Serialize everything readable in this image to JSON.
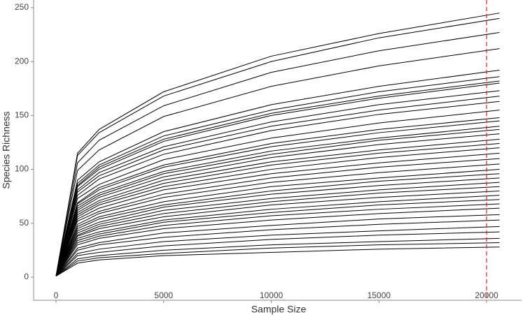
{
  "chart_data": {
    "type": "line",
    "xlabel": "Sample Size",
    "ylabel": "Species Richness",
    "x": [
      0,
      1000,
      2000,
      5000,
      10000,
      15000,
      20600
    ],
    "color": "#000000",
    "series": [
      {
        "values": [
          1,
          115,
          137,
          172,
          205,
          226,
          245
        ]
      },
      {
        "values": [
          1,
          113,
          134,
          168,
          200,
          222,
          240
        ]
      },
      {
        "values": [
          1,
          106,
          127,
          159,
          190,
          210,
          227
        ]
      },
      {
        "values": [
          1,
          99,
          118,
          149,
          177,
          196,
          212
        ]
      },
      {
        "values": [
          1,
          90,
          107,
          135,
          160,
          177,
          192
        ]
      },
      {
        "values": [
          1,
          87,
          104,
          131,
          155,
          172,
          186
        ]
      },
      {
        "values": [
          1,
          85,
          102,
          128,
          152,
          168,
          182
        ]
      },
      {
        "values": [
          1,
          84,
          100,
          126,
          150,
          166,
          180
        ]
      },
      {
        "values": [
          1,
          81,
          97,
          121,
          144,
          160,
          173
        ]
      },
      {
        "values": [
          1,
          79,
          94,
          118,
          140,
          155,
          168
        ]
      },
      {
        "values": [
          1,
          76,
          91,
          114,
          136,
          151,
          163
        ]
      },
      {
        "values": [
          1,
          73,
          86,
          109,
          129,
          143,
          155
        ]
      },
      {
        "values": [
          1,
          69,
          83,
          104,
          124,
          137,
          148
        ]
      },
      {
        "values": [
          1,
          68,
          81,
          102,
          121,
          134,
          145
        ]
      },
      {
        "values": [
          1,
          66,
          78,
          98,
          117,
          129,
          140
        ]
      },
      {
        "values": [
          1,
          64,
          76,
          96,
          114,
          127,
          137
        ]
      },
      {
        "values": [
          1,
          62,
          74,
          93,
          111,
          123,
          133
        ]
      },
      {
        "values": [
          1,
          60,
          71,
          90,
          107,
          118,
          128
        ]
      },
      {
        "values": [
          1,
          58,
          69,
          87,
          104,
          115,
          124
        ]
      },
      {
        "values": [
          1,
          56,
          67,
          84,
          100,
          111,
          120
        ]
      },
      {
        "values": [
          1,
          54,
          64,
          81,
          96,
          106,
          115
        ]
      },
      {
        "values": [
          1,
          52,
          61,
          77,
          92,
          102,
          110
        ]
      },
      {
        "values": [
          1,
          49,
          59,
          74,
          88,
          97,
          105
        ]
      },
      {
        "values": [
          1,
          47,
          56,
          70,
          84,
          92,
          100
        ]
      },
      {
        "values": [
          1,
          45,
          54,
          67,
          80,
          89,
          96
        ]
      },
      {
        "values": [
          1,
          43,
          51,
          65,
          77,
          85,
          92
        ]
      },
      {
        "values": [
          1,
          41,
          49,
          62,
          73,
          81,
          88
        ]
      },
      {
        "values": [
          1,
          39,
          47,
          59,
          70,
          78,
          84
        ]
      },
      {
        "values": [
          1,
          38,
          45,
          56,
          67,
          74,
          80
        ]
      },
      {
        "values": [
          1,
          36,
          42,
          53,
          63,
          70,
          76
        ]
      },
      {
        "values": [
          1,
          34,
          40,
          51,
          60,
          67,
          72
        ]
      },
      {
        "values": [
          1,
          32,
          38,
          48,
          57,
          63,
          68
        ]
      },
      {
        "values": [
          1,
          30,
          36,
          45,
          53,
          59,
          64
        ]
      },
      {
        "values": [
          1,
          27,
          32,
          41,
          48,
          54,
          58
        ]
      },
      {
        "values": [
          1,
          25,
          30,
          37,
          44,
          49,
          53
        ]
      },
      {
        "values": [
          1,
          22,
          26,
          33,
          39,
          43,
          47
        ]
      },
      {
        "values": [
          1,
          20,
          23,
          29,
          35,
          39,
          42
        ]
      },
      {
        "values": [
          1,
          17,
          20,
          25,
          30,
          33,
          36
        ]
      },
      {
        "values": [
          1,
          15,
          18,
          22,
          27,
          30,
          32
        ]
      },
      {
        "values": [
          1,
          13,
          16,
          20,
          23,
          26,
          28
        ]
      }
    ],
    "vline": {
      "value": 20000,
      "color": "#e41a1c",
      "dashed": true
    },
    "xlim": [
      -1041,
      21626
    ],
    "ylim": [
      -21.4,
      257.1
    ],
    "xticks": [
      0,
      5000,
      10000,
      15000,
      20000
    ],
    "yticks": [
      0,
      50,
      100,
      150,
      200,
      250
    ],
    "grid": false
  }
}
